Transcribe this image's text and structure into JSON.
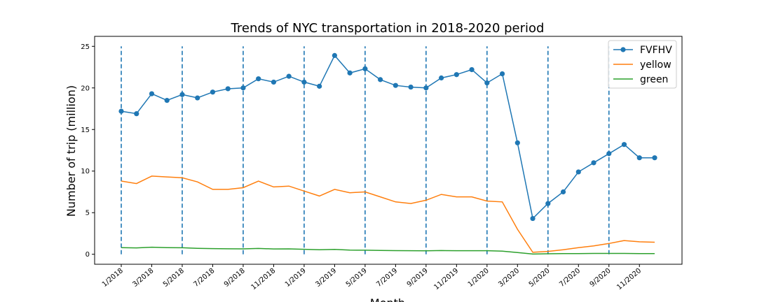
{
  "chart_data": {
    "type": "line",
    "title": "Trends of NYC transportation in 2018-2020 period",
    "xlabel": "Month",
    "ylabel": "Number of trip (million)",
    "ylim": [
      -1.2,
      26.2
    ],
    "yticks": [
      0,
      5,
      10,
      15,
      20,
      25
    ],
    "xtick_labels": [
      "1/2018",
      "3/2018",
      "5/2018",
      "7/2018",
      "9/2018",
      "11/2018",
      "1/2019",
      "3/2019",
      "5/2019",
      "7/2019",
      "9/2019",
      "11/2019",
      "1/2020",
      "3/2020",
      "5/2020",
      "7/2020",
      "9/2020",
      "11/2020"
    ],
    "x": [
      "1/2018",
      "2/2018",
      "3/2018",
      "4/2018",
      "5/2018",
      "6/2018",
      "7/2018",
      "8/2018",
      "9/2018",
      "10/2018",
      "11/2018",
      "12/2018",
      "1/2019",
      "2/2019",
      "3/2019",
      "4/2019",
      "5/2019",
      "6/2019",
      "7/2019",
      "8/2019",
      "9/2019",
      "10/2019",
      "11/2019",
      "12/2019",
      "1/2020",
      "2/2020",
      "3/2020",
      "4/2020",
      "5/2020",
      "6/2020",
      "7/2020",
      "8/2020",
      "9/2020",
      "10/2020",
      "11/2020",
      "12/2020"
    ],
    "year_markers": [
      "1/2018",
      "5/2018",
      "9/2018",
      "1/2019",
      "5/2019",
      "9/2019",
      "1/2020",
      "5/2020",
      "9/2020"
    ],
    "series": [
      {
        "name": "FVFHV",
        "color": "#1f77b4",
        "marker": "circle",
        "values": [
          17.2,
          16.9,
          19.3,
          18.5,
          19.2,
          18.8,
          19.5,
          19.9,
          20.0,
          21.1,
          20.7,
          21.4,
          20.7,
          20.2,
          23.9,
          21.8,
          22.3,
          21.0,
          20.3,
          20.1,
          20.0,
          21.2,
          21.6,
          22.2,
          20.6,
          21.7,
          13.4,
          4.3,
          6.1,
          7.5,
          9.9,
          11.0,
          12.1,
          13.2,
          11.6,
          11.6
        ]
      },
      {
        "name": "yellow",
        "color": "#ff7f0e",
        "marker": "none",
        "values": [
          8.8,
          8.5,
          9.4,
          9.3,
          9.2,
          8.7,
          7.8,
          7.8,
          8.0,
          8.8,
          8.1,
          8.2,
          7.6,
          7.0,
          7.8,
          7.4,
          7.5,
          6.9,
          6.3,
          6.1,
          6.5,
          7.2,
          6.9,
          6.9,
          6.4,
          6.3,
          3.0,
          0.24,
          0.35,
          0.55,
          0.8,
          1.0,
          1.3,
          1.65,
          1.5,
          1.45
        ]
      },
      {
        "name": "green",
        "color": "#2ca02c",
        "marker": "none",
        "values": [
          0.8,
          0.77,
          0.85,
          0.8,
          0.78,
          0.72,
          0.68,
          0.66,
          0.65,
          0.7,
          0.64,
          0.65,
          0.6,
          0.55,
          0.58,
          0.5,
          0.49,
          0.46,
          0.44,
          0.43,
          0.42,
          0.45,
          0.43,
          0.43,
          0.43,
          0.38,
          0.2,
          0.03,
          0.06,
          0.08,
          0.09,
          0.1,
          0.1,
          0.1,
          0.09,
          0.08
        ]
      }
    ],
    "marker_line": {
      "color": "#1f77b4",
      "style": "dashed",
      "range": [
        0,
        25
      ]
    },
    "legend_position": "top-right",
    "grid": false
  }
}
